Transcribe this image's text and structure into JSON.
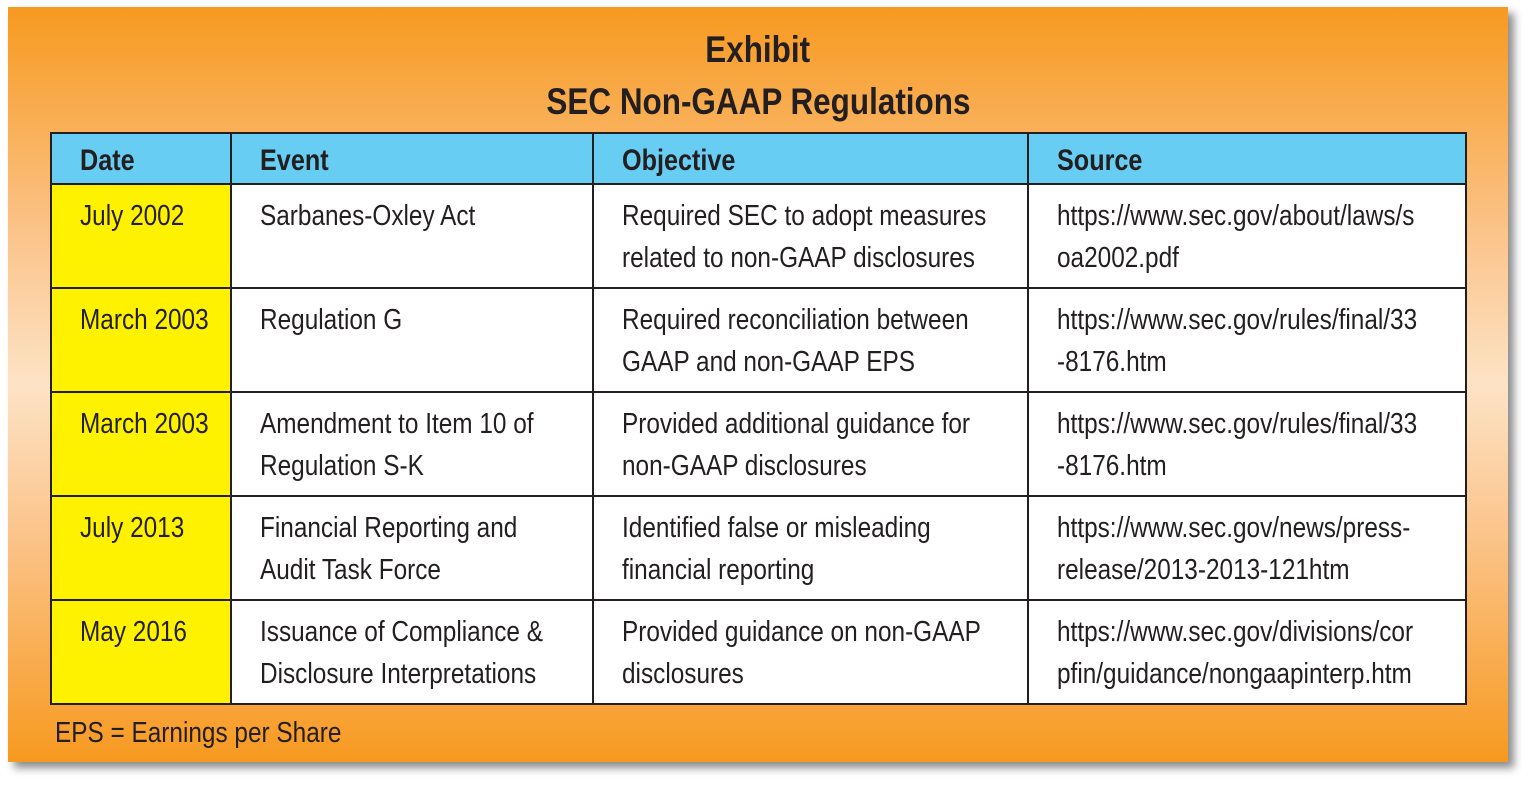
{
  "title": {
    "line1": "Exhibit",
    "line2": "SEC Non-GAAP Regulations"
  },
  "colors": {
    "header_bg": "#68cdf3",
    "date_bg": "#fff200",
    "frame": "#f7991f"
  },
  "table": {
    "headers": [
      "Date",
      "Event",
      "Objective",
      "Source"
    ],
    "rows": [
      {
        "date": "July 2002",
        "event": [
          "Sarbanes-Oxley Act"
        ],
        "objective": [
          "Required SEC to adopt measures",
          "related to non-GAAP disclosures"
        ],
        "source": [
          "https://www.sec.gov/about/laws/s",
          "oa2002.pdf"
        ]
      },
      {
        "date": "March 2003",
        "event": [
          "Regulation G"
        ],
        "objective": [
          "Required reconciliation between",
          "GAAP and non-GAAP EPS"
        ],
        "source": [
          "https://www.sec.gov/rules/final/33",
          "-8176.htm"
        ]
      },
      {
        "date": "March 2003",
        "event": [
          "Amendment to Item 10 of",
          "Regulation S-K"
        ],
        "objective": [
          "Provided additional guidance for",
          "non-GAAP disclosures"
        ],
        "source": [
          "https://www.sec.gov/rules/final/33",
          "-8176.htm"
        ]
      },
      {
        "date": "July 2013",
        "event": [
          "Financial Reporting and",
          "Audit Task Force"
        ],
        "objective": [
          "Identified false or misleading",
          "financial reporting"
        ],
        "source": [
          "https://www.sec.gov/news/press-",
          "release/2013-2013-121htm"
        ]
      },
      {
        "date": "May 2016",
        "event": [
          "Issuance of Compliance &",
          "Disclosure Interpretations"
        ],
        "objective": [
          "Provided guidance on non-GAAP",
          "disclosures"
        ],
        "source": [
          "https://www.sec.gov/divisions/cor",
          "pfin/guidance/nongaapinterp.htm"
        ]
      }
    ]
  },
  "footnote": "EPS = Earnings per Share"
}
